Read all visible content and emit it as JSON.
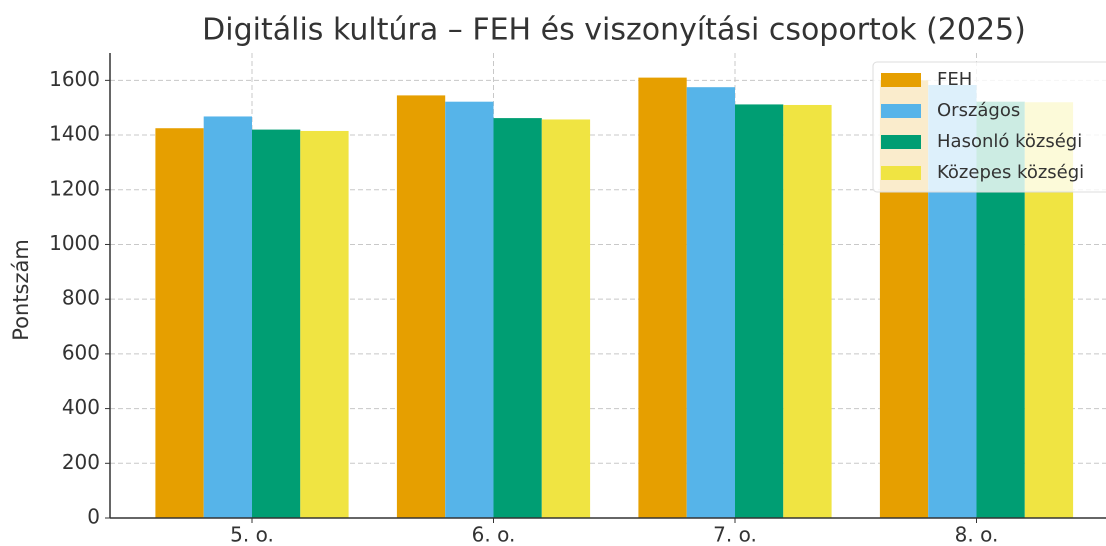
{
  "chart_data": {
    "type": "bar",
    "title": "Digitális kultúra – FEH és viszonyítási csoportok (2025)",
    "ylabel": "Pontszám",
    "categories": [
      "5. o.",
      "6. o.",
      "7. o.",
      "8. o."
    ],
    "series": [
      {
        "name": "FEH",
        "color": "#E69F00",
        "values": [
          1425,
          1545,
          1610,
          1600
        ]
      },
      {
        "name": "Országos",
        "color": "#56B4E9",
        "values": [
          1468,
          1522,
          1575,
          1583
        ]
      },
      {
        "name": "Hasonló községi",
        "color": "#009E73",
        "values": [
          1420,
          1462,
          1512,
          1522
        ]
      },
      {
        "name": "Közepes községi",
        "color": "#F0E442",
        "values": [
          1415,
          1457,
          1510,
          1520
        ]
      }
    ],
    "ylim": [
      0,
      1700
    ],
    "yticks": [
      0,
      200,
      400,
      600,
      800,
      1000,
      1200,
      1400,
      1600
    ],
    "grid": true,
    "legend": "upper right"
  }
}
